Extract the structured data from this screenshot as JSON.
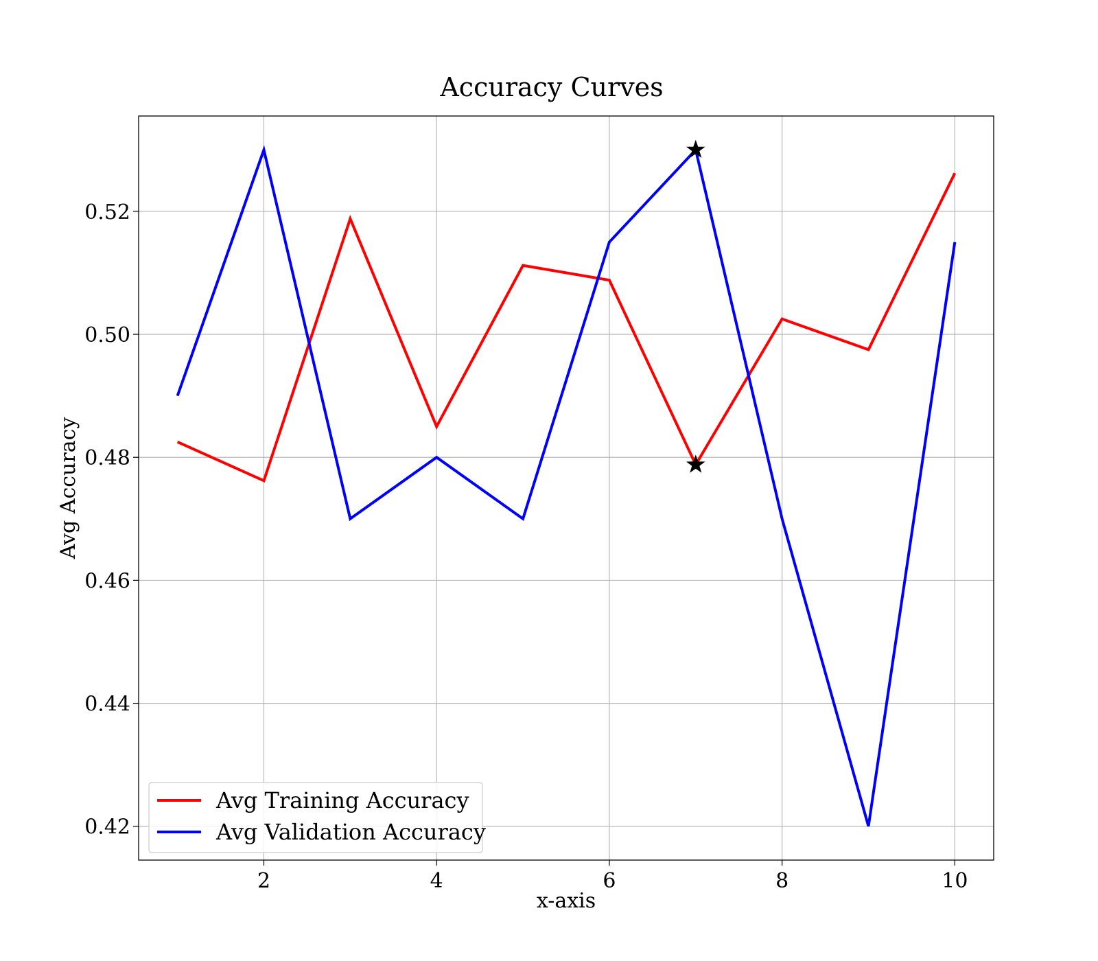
{
  "chart_data": {
    "type": "line",
    "title": "Accuracy Curves",
    "xlabel": "x-axis",
    "ylabel": "Avg Accuracy",
    "xlim": [
      0.55,
      10.45
    ],
    "ylim": [
      0.4145,
      0.5355
    ],
    "xticks": [
      2,
      4,
      6,
      8,
      10
    ],
    "yticks": [
      0.42,
      0.44,
      0.46,
      0.48,
      0.5,
      0.52
    ],
    "ytick_labels": [
      "0.42",
      "0.44",
      "0.46",
      "0.48",
      "0.50",
      "0.52"
    ],
    "grid": true,
    "legend_position": "lower-left",
    "x": [
      1,
      2,
      3,
      4,
      5,
      6,
      7,
      8,
      9,
      10
    ],
    "series": [
      {
        "name": "Avg Training Accuracy",
        "color": "#ff0000",
        "values": [
          0.4825,
          0.4762,
          0.5188,
          0.485,
          0.5112,
          0.5088,
          0.4788,
          0.5025,
          0.4975,
          0.5262
        ]
      },
      {
        "name": "Avg Validation Accuracy",
        "color": "#0000ff",
        "values": [
          0.49,
          0.53,
          0.47,
          0.48,
          0.47,
          0.515,
          0.53,
          0.47,
          0.42,
          0.515
        ]
      }
    ],
    "markers": [
      {
        "series": "Avg Training Accuracy",
        "x": 7,
        "y": 0.4788,
        "symbol": "star",
        "color": "#000000"
      },
      {
        "series": "Avg Validation Accuracy",
        "x": 7,
        "y": 0.53,
        "symbol": "star",
        "color": "#000000"
      }
    ]
  }
}
